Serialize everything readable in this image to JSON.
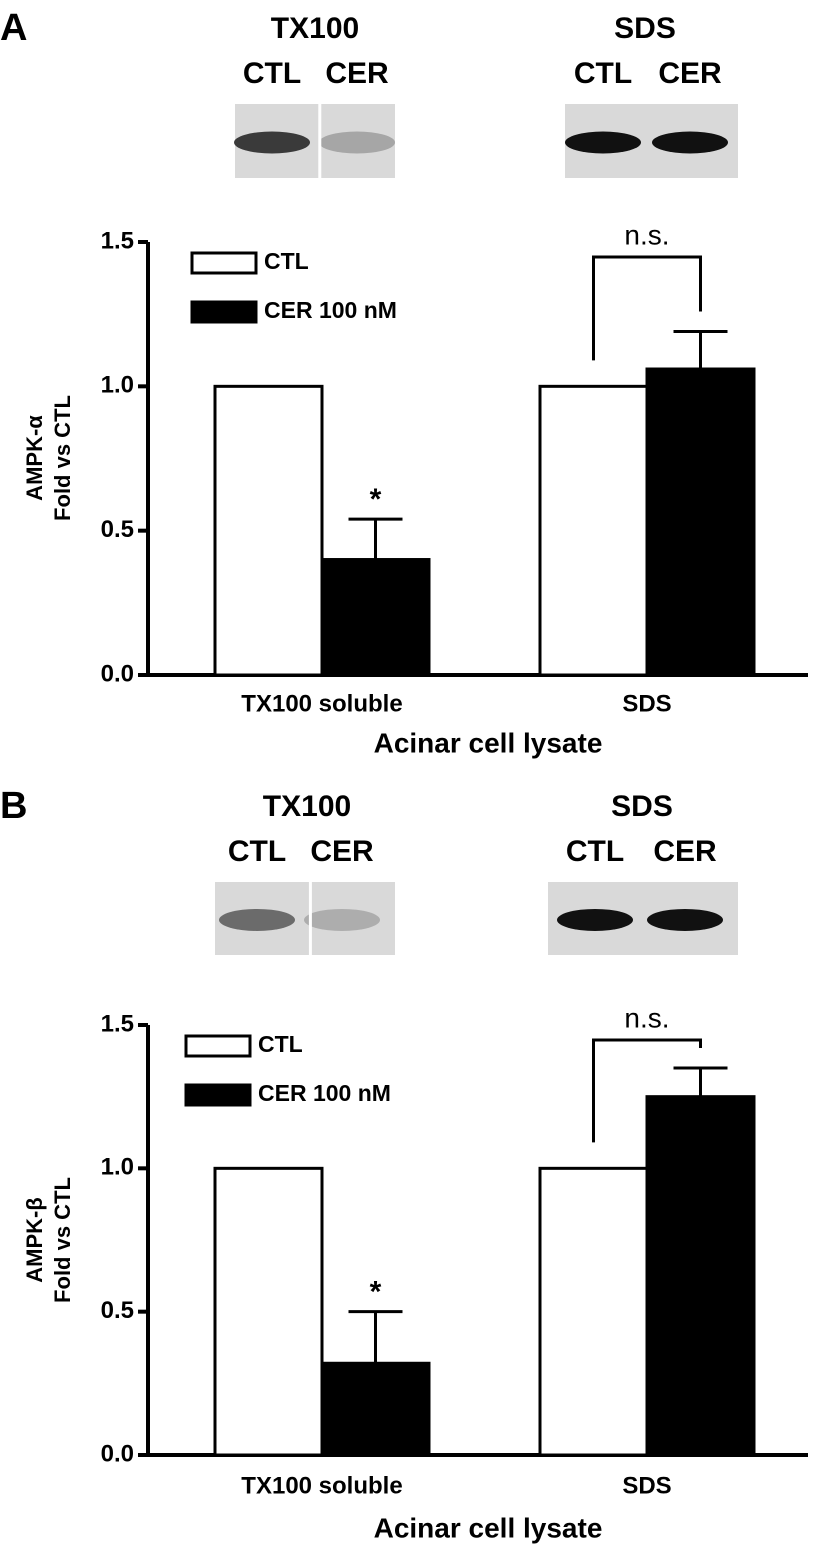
{
  "chart_data": [
    {
      "type": "bar",
      "panel_label": "A",
      "blots": [
        {
          "title": "TX100",
          "lanes": [
            "CTL",
            "CER"
          ]
        },
        {
          "title": "SDS",
          "lanes": [
            "CTL",
            "CER"
          ]
        }
      ],
      "ylabel": [
        "AMPK-α",
        "Fold vs CTL"
      ],
      "xlabel": "Acinar cell lysate",
      "categories": [
        "TX100 soluble",
        "SDS"
      ],
      "series": [
        {
          "name": "CTL",
          "color": "#ffffff",
          "values": [
            1.0,
            1.0
          ]
        },
        {
          "name": "CER 100 nM",
          "color": "#000000",
          "values": [
            0.4,
            1.06
          ],
          "errors": [
            0.14,
            0.13
          ]
        }
      ],
      "ylim": [
        0,
        1.5
      ],
      "yticks": [
        {
          "value": 0,
          "label": "0.0"
        },
        0.5,
        {
          "value": 1,
          "label": "1.0"
        },
        1.5
      ],
      "significance": {
        "star": "*",
        "ns": "n.s."
      },
      "legend": "upper left"
    },
    {
      "type": "bar",
      "panel_label": "B",
      "blots": [
        {
          "title": "TX100",
          "lanes": [
            "CTL",
            "CER"
          ]
        },
        {
          "title": "SDS",
          "lanes": [
            "CTL",
            "CER"
          ]
        }
      ],
      "ylabel": [
        "AMPK-β",
        "Fold vs CTL"
      ],
      "xlabel": "Acinar cell lysate",
      "categories": [
        "TX100 soluble",
        "SDS"
      ],
      "series": [
        {
          "name": "CTL",
          "color": "#ffffff",
          "values": [
            1.0,
            1.0
          ]
        },
        {
          "name": "CER 100 nM",
          "color": "#000000",
          "values": [
            0.32,
            1.25
          ],
          "errors": [
            0.18,
            0.1
          ]
        }
      ],
      "ylim": [
        0,
        1.5
      ],
      "yticks": [
        {
          "value": 0,
          "label": "0.0"
        },
        0.5,
        {
          "value": 1,
          "label": "1.0"
        },
        1.5
      ],
      "significance": {
        "star": "*",
        "ns": "n.s."
      },
      "legend": "upper left"
    }
  ]
}
